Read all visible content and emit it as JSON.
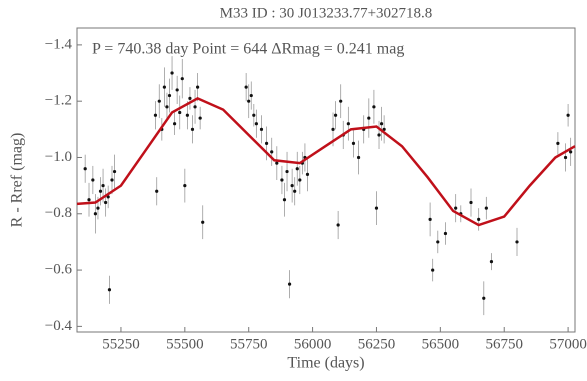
{
  "chart_data": {
    "type": "scatter",
    "title": "M33 ID : 30 J013233.77+302718.8",
    "annotation": "P = 740.38 day Point = 644 ΔRmag = 0.241 mag",
    "xlabel": "Time (days)",
    "ylabel": "R - Rref (mag)",
    "xlim": [
      55078,
      57027
    ],
    "ylim": [
      -0.38,
      -1.46
    ],
    "xticks": [
      55250,
      55500,
      55750,
      56000,
      56250,
      56500,
      56750,
      57000
    ],
    "yticks": [
      {
        "value": -1.4,
        "label": "−1.4"
      },
      {
        "value": -1.2,
        "label": "−1.2"
      },
      {
        "value": -1.0,
        "label": "−1.0"
      },
      {
        "value": -0.8,
        "label": "−0.8"
      },
      {
        "value": -0.6,
        "label": "−0.6"
      },
      {
        "value": -0.4,
        "label": "−0.4"
      }
    ],
    "series": [
      {
        "type": "scatter",
        "color": "#111111",
        "x": [
          55110,
          55125,
          55140,
          55150,
          55160,
          55170,
          55180,
          55190,
          55200,
          55205,
          55215,
          55225,
          55385,
          55390,
          55400,
          55410,
          55420,
          55430,
          55440,
          55450,
          55460,
          55470,
          55480,
          55490,
          55500,
          55510,
          55520,
          55530,
          55540,
          55550,
          55560,
          55570,
          55740,
          55750,
          55760,
          55770,
          55780,
          55800,
          55820,
          55840,
          55860,
          55880,
          55890,
          55900,
          55910,
          55920,
          55930,
          55940,
          55950,
          55960,
          55970,
          55980,
          56080,
          56090,
          56100,
          56110,
          56120,
          56140,
          56160,
          56180,
          56200,
          56220,
          56240,
          56250,
          56260,
          56270,
          56280,
          56460,
          56470,
          56490,
          56520,
          56560,
          56580,
          56620,
          56650,
          56670,
          56680,
          56700,
          56800,
          56960,
          56990,
          57000,
          57010
        ],
        "values": [
          -0.96,
          -0.85,
          -0.92,
          -0.8,
          -0.82,
          -0.88,
          -0.9,
          -0.84,
          -0.86,
          -0.53,
          -0.92,
          -0.95,
          -1.15,
          -0.88,
          -1.2,
          -1.1,
          -1.25,
          -1.18,
          -1.22,
          -1.3,
          -1.12,
          -1.24,
          -1.16,
          -1.28,
          -0.9,
          -1.15,
          -1.21,
          -1.1,
          -1.18,
          -1.25,
          -1.14,
          -0.77,
          -1.25,
          -1.2,
          -1.22,
          -1.15,
          -1.12,
          -1.1,
          -1.05,
          -1.02,
          -0.98,
          -0.92,
          -0.85,
          -0.95,
          -0.55,
          -0.9,
          -0.88,
          -0.96,
          -0.92,
          -0.98,
          -1.0,
          -0.94,
          -1.1,
          -1.15,
          -0.76,
          -1.2,
          -1.08,
          -1.12,
          -1.05,
          -1.0,
          -1.1,
          -1.14,
          -1.18,
          -0.82,
          -1.08,
          -1.12,
          -1.1,
          -0.78,
          -0.6,
          -0.7,
          -0.73,
          -0.82,
          -0.8,
          -0.84,
          -0.78,
          -0.5,
          -0.82,
          -0.63,
          -0.7,
          -1.05,
          -1.0,
          -1.15,
          -1.02
        ],
        "errors": [
          0.05,
          0.06,
          0.05,
          0.07,
          0.04,
          0.05,
          0.06,
          0.05,
          0.04,
          0.05,
          0.05,
          0.06,
          0.05,
          0.05,
          0.06,
          0.04,
          0.07,
          0.05,
          0.06,
          0.06,
          0.04,
          0.05,
          0.06,
          0.07,
          0.06,
          0.05,
          0.04,
          0.05,
          0.06,
          0.05,
          0.04,
          0.06,
          0.05,
          0.06,
          0.05,
          0.04,
          0.05,
          0.05,
          0.06,
          0.05,
          0.06,
          0.05,
          0.06,
          0.07,
          0.05,
          0.06,
          0.05,
          0.06,
          0.05,
          0.04,
          0.05,
          0.06,
          0.06,
          0.05,
          0.05,
          0.06,
          0.05,
          0.06,
          0.05,
          0.06,
          0.05,
          0.07,
          0.06,
          0.06,
          0.05,
          0.06,
          0.05,
          0.06,
          0.04,
          0.04,
          0.04,
          0.05,
          0.03,
          0.05,
          0.04,
          0.06,
          0.04,
          0.03,
          0.05,
          0.04,
          0.05,
          0.04,
          0.05
        ]
      },
      {
        "type": "line",
        "color": "#c0101a",
        "x": [
          55078,
          55150,
          55250,
          55350,
          55450,
          55550,
          55650,
          55750,
          55850,
          55950,
          56050,
          56150,
          56250,
          56350,
          56450,
          56550,
          56650,
          56750,
          56850,
          56950,
          57027
        ],
        "values": [
          -0.835,
          -0.84,
          -0.9,
          -1.03,
          -1.16,
          -1.21,
          -1.17,
          -1.08,
          -0.99,
          -0.98,
          -1.04,
          -1.1,
          -1.11,
          -1.04,
          -0.93,
          -0.81,
          -0.76,
          -0.79,
          -0.9,
          -1.0,
          -1.04
        ]
      }
    ]
  }
}
